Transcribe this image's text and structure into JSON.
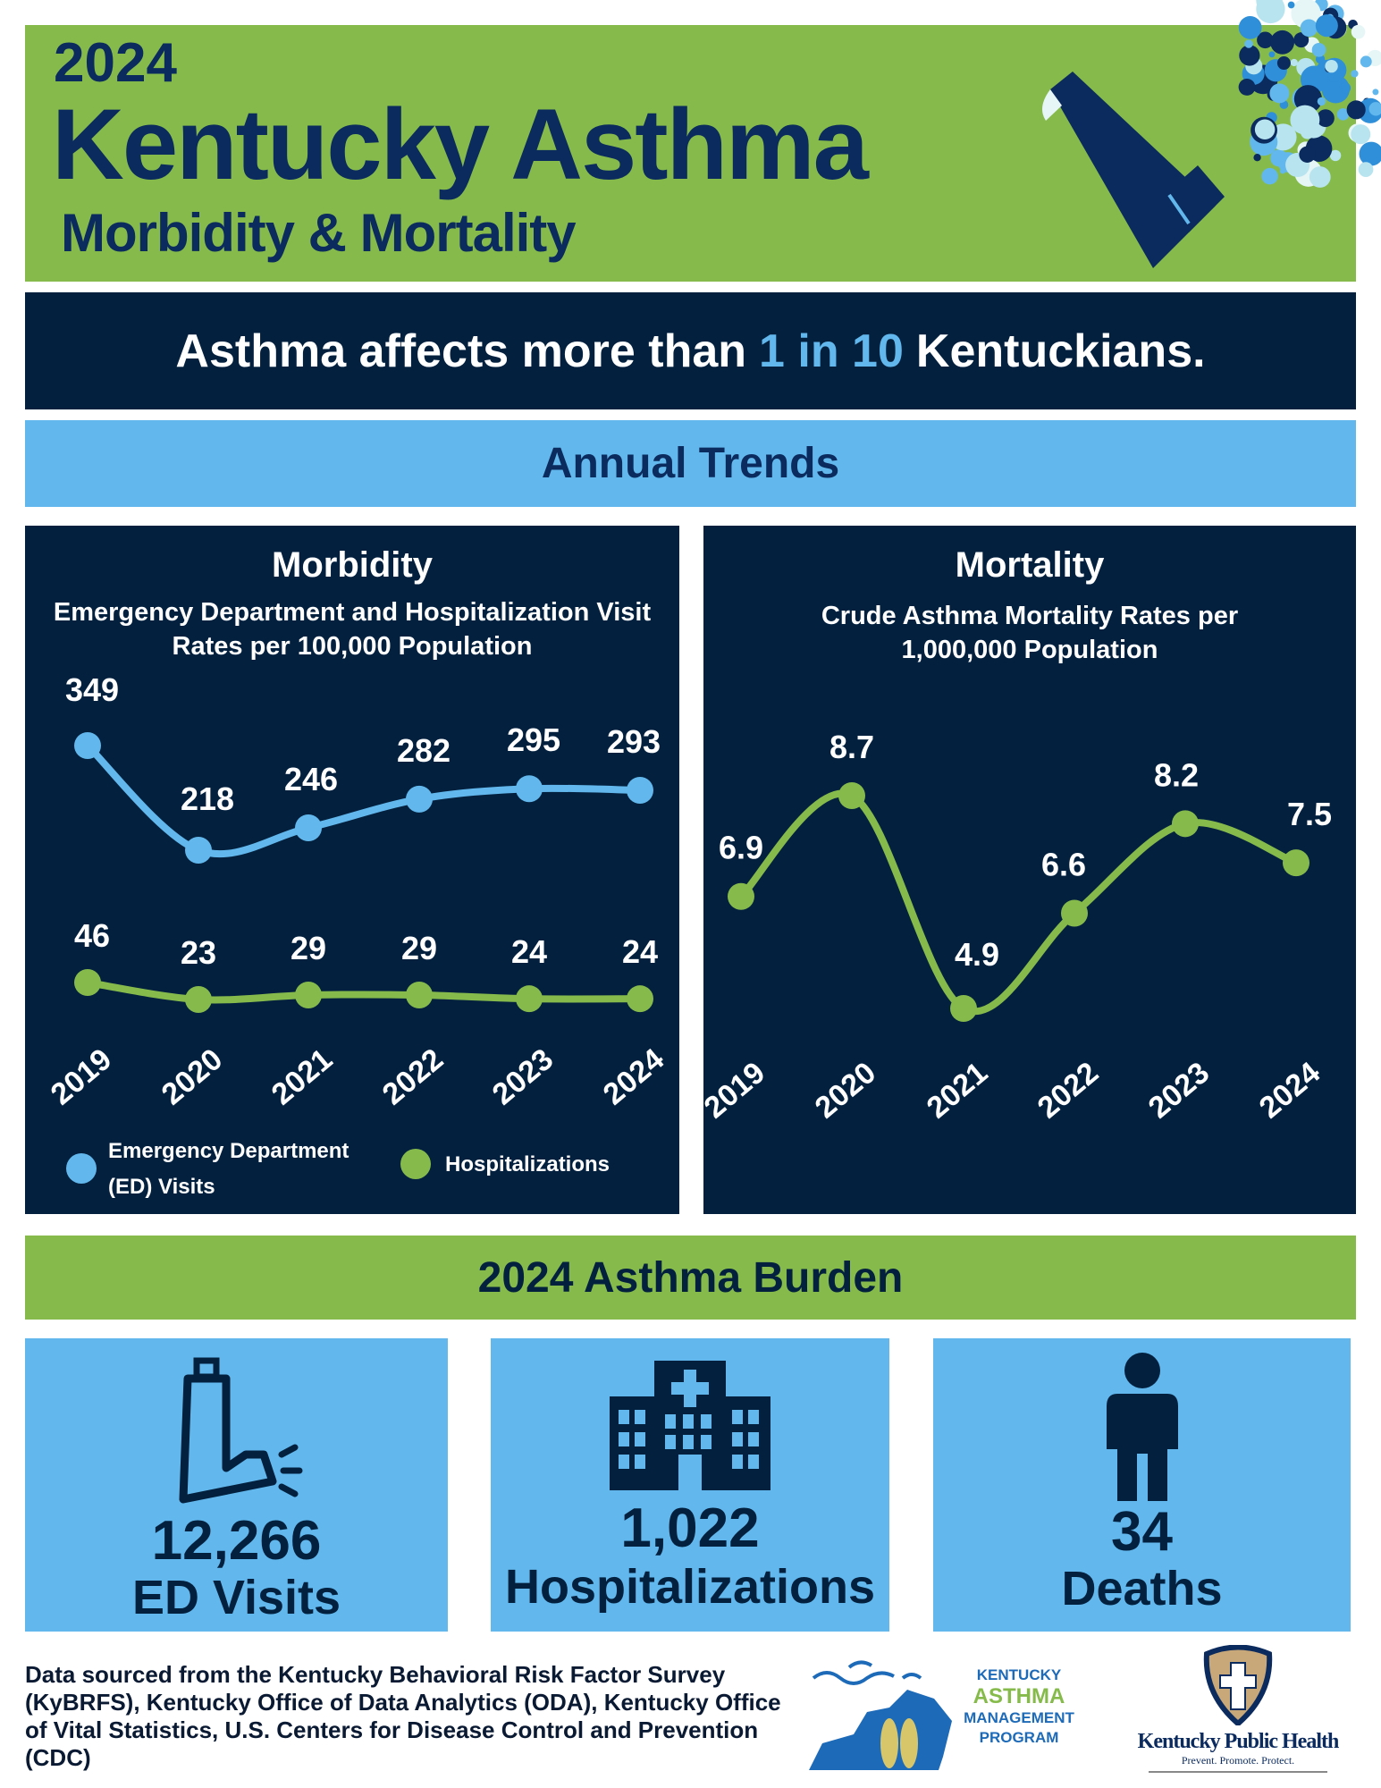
{
  "header": {
    "year": "2024",
    "title": "Kentucky Asthma",
    "subtitle": "Morbidity & Mortality",
    "colors": {
      "green": "#86bb4c",
      "navy": "#03203f",
      "light_blue": "#62b8ec"
    }
  },
  "banner": {
    "before": "Asthma affects more than",
    "highlight": "1 in 10",
    "after": "Kentuckians."
  },
  "section_trends": "Annual Trends",
  "chart_data": [
    {
      "type": "line",
      "title": "Morbidity",
      "subtitle": "Emergency Department and Hospitalization Visit Rates per 100,000 Population",
      "categories": [
        "2019",
        "2020",
        "2021",
        "2022",
        "2023",
        "2024"
      ],
      "series": [
        {
          "name": "Emergency Department (ED) Visits",
          "values": [
            349,
            218,
            246,
            282,
            295,
            293
          ],
          "color": "#62b8ec"
        },
        {
          "name": "Hospitalizations",
          "values": [
            46,
            23,
            29,
            29,
            24,
            24
          ],
          "color": "#86bb4c"
        }
      ],
      "legend": "bottom"
    },
    {
      "type": "line",
      "title": "Mortality",
      "subtitle": "Crude Asthma Mortality Rates per 1,000,000 Population",
      "categories": [
        "2019",
        "2020",
        "2021",
        "2022",
        "2023",
        "2024"
      ],
      "series": [
        {
          "values": [
            6.9,
            8.7,
            4.9,
            6.6,
            8.2,
            7.5
          ],
          "color": "#86bb4c"
        }
      ]
    }
  ],
  "legend": {
    "ed_line1": "Emergency Department",
    "ed_line2": "(ED) Visits",
    "hosp": "Hospitalizations"
  },
  "burden": {
    "title": "2024 Asthma Burden",
    "cards": [
      {
        "icon": "inhaler-icon",
        "value": "12,266",
        "label": "ED Visits"
      },
      {
        "icon": "hospital-icon",
        "value": "1,022",
        "label": "Hospitalizations"
      },
      {
        "icon": "person-icon",
        "value": "34",
        "label": "Deaths"
      }
    ]
  },
  "footer": {
    "source": "Data sourced from the Kentucky Behavioral Risk Factor Survey (KyBRFS), Kentucky Office of Data Analytics (ODA), Kentucky Office of Vital Statistics, U.S. Centers for Disease Control and Prevention (CDC)",
    "kamp_logo": [
      "KENTUCKY",
      "ASTHMA",
      "MANAGEMENT",
      "PROGRAM"
    ],
    "kph_logo": "Kentucky Public Health",
    "kph_tagline": "Prevent. Promote. Protect."
  }
}
